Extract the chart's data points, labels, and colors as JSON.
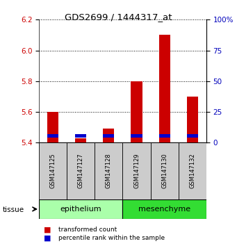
{
  "title": "GDS2699 / 1444317_at",
  "samples": [
    "GSM147125",
    "GSM147127",
    "GSM147128",
    "GSM147129",
    "GSM147130",
    "GSM147132"
  ],
  "red_values": [
    5.6,
    5.43,
    5.49,
    5.8,
    6.1,
    5.7
  ],
  "blue_values_bottom": [
    5.435,
    5.435,
    5.435,
    5.435,
    5.435,
    5.435
  ],
  "blue_bar_height": 0.022,
  "baseline": 5.4,
  "ylim_left": [
    5.4,
    6.2
  ],
  "ylim_right": [
    0,
    100
  ],
  "yticks_left": [
    5.4,
    5.6,
    5.8,
    6.0,
    6.2
  ],
  "yticks_right": [
    0,
    25,
    50,
    75,
    100
  ],
  "ytick_labels_right": [
    "0",
    "25",
    "50",
    "75",
    "100%"
  ],
  "groups": [
    {
      "label": "epithelium",
      "indices": [
        0,
        1,
        2
      ],
      "color": "#AAFFAA"
    },
    {
      "label": "mesenchyme",
      "indices": [
        3,
        4,
        5
      ],
      "color": "#33DD33"
    }
  ],
  "tissue_label": "tissue",
  "legend_red_label": "transformed count",
  "legend_blue_label": "percentile rank within the sample",
  "bar_width": 0.4,
  "red_bar_color": "#CC0000",
  "blue_bar_color": "#0000CC",
  "left_tick_color": "#CC0000",
  "right_tick_color": "#0000BB",
  "sample_box_color": "#CCCCCC"
}
